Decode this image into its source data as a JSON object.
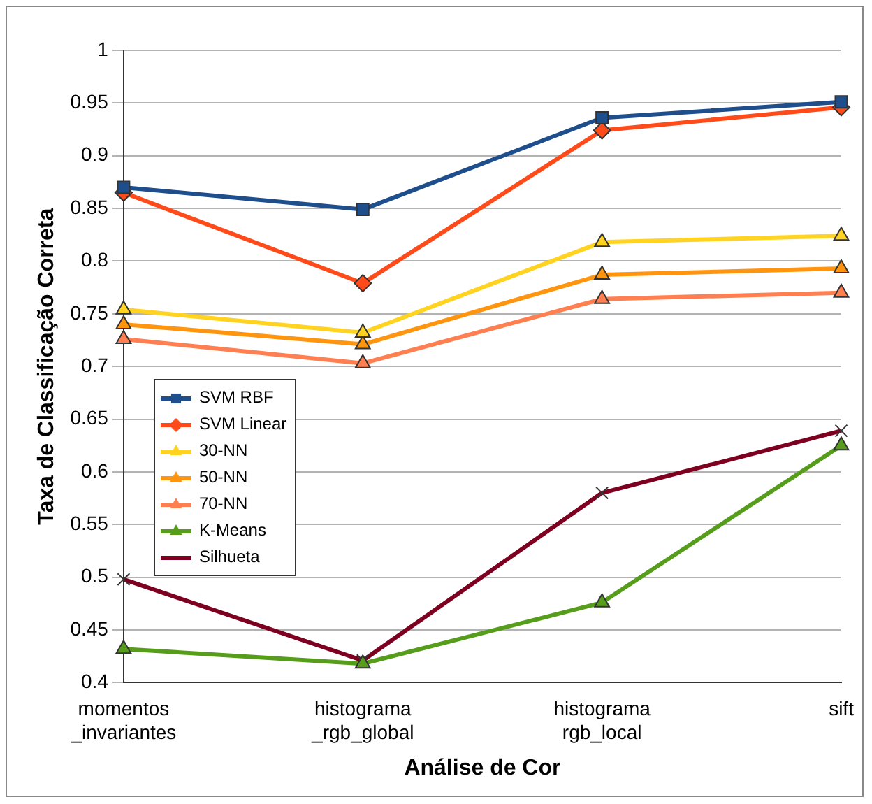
{
  "chart_data": {
    "type": "line",
    "xlabel": "Análise de Cor",
    "ylabel": "Taxa de Classificação Correta",
    "categories": [
      "momentos\n_invariantes",
      "histograma\n_rgb_global",
      "histograma\nrgb_local",
      "sift"
    ],
    "series": [
      {
        "name": "SVM RBF",
        "color": "#1f4e8c",
        "marker": "square",
        "values": [
          0.87,
          0.849,
          0.936,
          0.951
        ]
      },
      {
        "name": "SVM Linear",
        "color": "#ff4a1a",
        "marker": "diamond",
        "values": [
          0.865,
          0.779,
          0.924,
          0.946
        ]
      },
      {
        "name": "30-NN",
        "color": "#ffd320",
        "marker": "triangle",
        "values": [
          0.754,
          0.732,
          0.818,
          0.824
        ]
      },
      {
        "name": "50-NN",
        "color": "#ff950e",
        "marker": "triangle",
        "values": [
          0.74,
          0.721,
          0.787,
          0.793
        ]
      },
      {
        "name": "70-NN",
        "color": "#ff7f50",
        "marker": "triangle",
        "values": [
          0.726,
          0.703,
          0.764,
          0.77
        ]
      },
      {
        "name": "K-Means",
        "color": "#579d1c",
        "marker": "triangle",
        "values": [
          0.432,
          0.418,
          0.476,
          0.625
        ]
      },
      {
        "name": "Silhueta",
        "color": "#7e0021",
        "marker": "cross",
        "values": [
          0.498,
          0.421,
          0.58,
          0.639
        ]
      }
    ],
    "ylim": [
      0.4,
      1
    ],
    "yticks": [
      0.4,
      0.45,
      0.5,
      0.55,
      0.6,
      0.65,
      0.7,
      0.75,
      0.8,
      0.85,
      0.9,
      0.95,
      1
    ],
    "grid": "y",
    "legend": "left",
    "line_style": "solid"
  }
}
